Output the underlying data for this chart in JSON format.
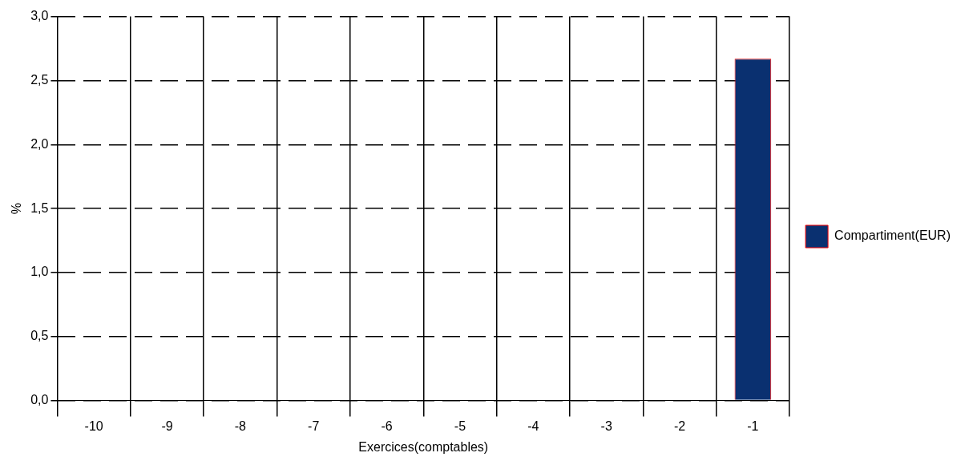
{
  "chart_data": {
    "type": "bar",
    "xlabel": "Exercices(comptables)",
    "ylabel": "%",
    "categories": [
      "-10",
      "-9",
      "-8",
      "-7",
      "-6",
      "-5",
      "-4",
      "-3",
      "-2",
      "-1"
    ],
    "series": [
      {
        "name": "Compartiment(EUR)",
        "color": "#0a3070",
        "values": [
          null,
          null,
          null,
          null,
          null,
          null,
          null,
          null,
          null,
          2.67
        ]
      }
    ],
    "ylim": [
      0,
      3
    ],
    "yticks": [
      {
        "value": 0,
        "label": "0,0"
      },
      {
        "value": 0.5,
        "label": "0,5"
      },
      {
        "value": 1,
        "label": "1,0"
      },
      {
        "value": 1.5,
        "label": "1,5"
      },
      {
        "value": 2,
        "label": "2,0"
      },
      {
        "value": 2.5,
        "label": "2,5"
      },
      {
        "value": 3,
        "label": "3,0"
      }
    ],
    "grid": true,
    "legend": "right"
  }
}
